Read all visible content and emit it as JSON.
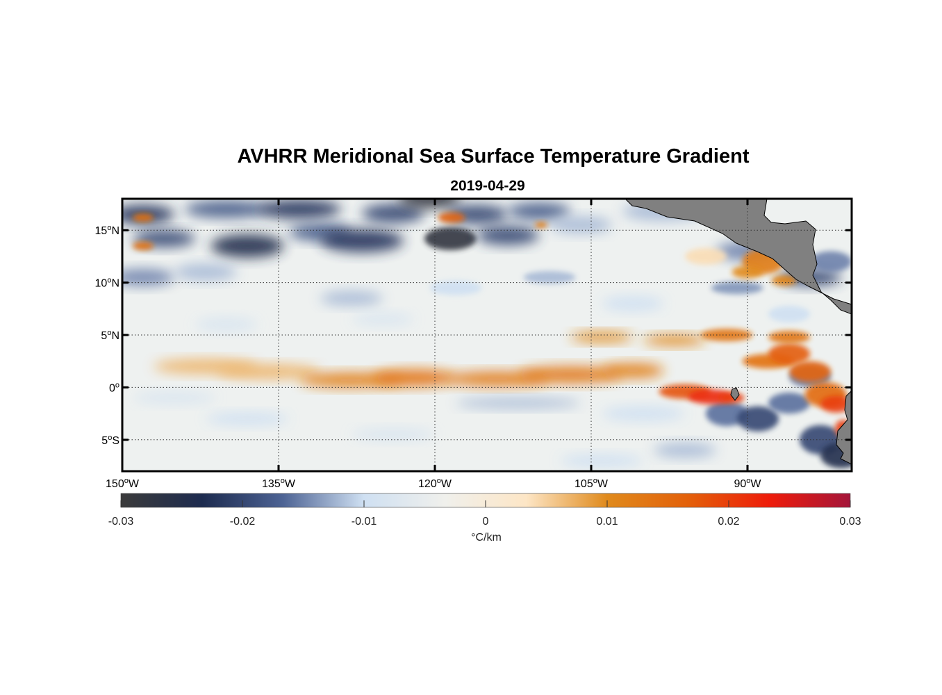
{
  "title": "AVHRR Meridional Sea Surface Temperature Gradient",
  "subtitle": "2019-04-29",
  "colorbar_label": "°C/km",
  "chart_data": {
    "type": "heatmap",
    "title": "AVHRR Meridional Sea Surface Temperature Gradient",
    "subtitle": "2019-04-29",
    "xlim": [
      -150,
      -80
    ],
    "ylim": [
      -8,
      18
    ],
    "lon_ticks": [
      {
        "value": -150,
        "num": "150",
        "hemi": "W"
      },
      {
        "value": -135,
        "num": "135",
        "hemi": "W"
      },
      {
        "value": -120,
        "num": "120",
        "hemi": "W"
      },
      {
        "value": -105,
        "num": "105",
        "hemi": "W"
      },
      {
        "value": -90,
        "num": "90",
        "hemi": "W"
      }
    ],
    "lat_ticks": [
      {
        "value": 15,
        "num": "15",
        "hemi": "N"
      },
      {
        "value": 10,
        "num": "10",
        "hemi": "N"
      },
      {
        "value": 5,
        "num": "5",
        "hemi": "N"
      },
      {
        "value": 0,
        "num": "0",
        "hemi": ""
      },
      {
        "value": -5,
        "num": "5",
        "hemi": "S"
      }
    ],
    "grid": true,
    "colorbar": {
      "label": "°C/km",
      "range": [
        -0.03,
        0.03
      ],
      "ticks": [
        {
          "value": -0.03,
          "label": "-0.03"
        },
        {
          "value": -0.02,
          "label": "-0.02"
        },
        {
          "value": -0.01,
          "label": "-0.01"
        },
        {
          "value": 0,
          "label": "0"
        },
        {
          "value": 0.01,
          "label": "0.01"
        },
        {
          "value": 0.02,
          "label": "0.02"
        },
        {
          "value": 0.03,
          "label": "0.03"
        }
      ],
      "colors": [
        "#3b3b3b",
        "#1d2b4f",
        "#4d6394",
        "#cfe0f2",
        "#f0f0ec",
        "#fde6c6",
        "#e08a1c",
        "#e3600a",
        "#ee1c0a",
        "#a4153a"
      ]
    },
    "features": [
      {
        "name": "positive gradient band",
        "lat": 0.5,
        "lon": [
          -130,
          -80
        ],
        "value": 0.012
      },
      {
        "name": "positive gradient band",
        "lat": 5,
        "lon": [
          -105,
          -80
        ],
        "value": 0.012
      },
      {
        "name": "strong positive maximum",
        "lat": -0.7,
        "lon": [
          -98,
          -92
        ],
        "value": 0.022
      },
      {
        "name": "negative gradient band",
        "lat": 15,
        "lon": [
          -150,
          -110
        ],
        "value": -0.02
      },
      {
        "name": "negative gradient band",
        "lat": -3,
        "lon": [
          -115,
          -80
        ],
        "value": -0.01
      }
    ]
  }
}
